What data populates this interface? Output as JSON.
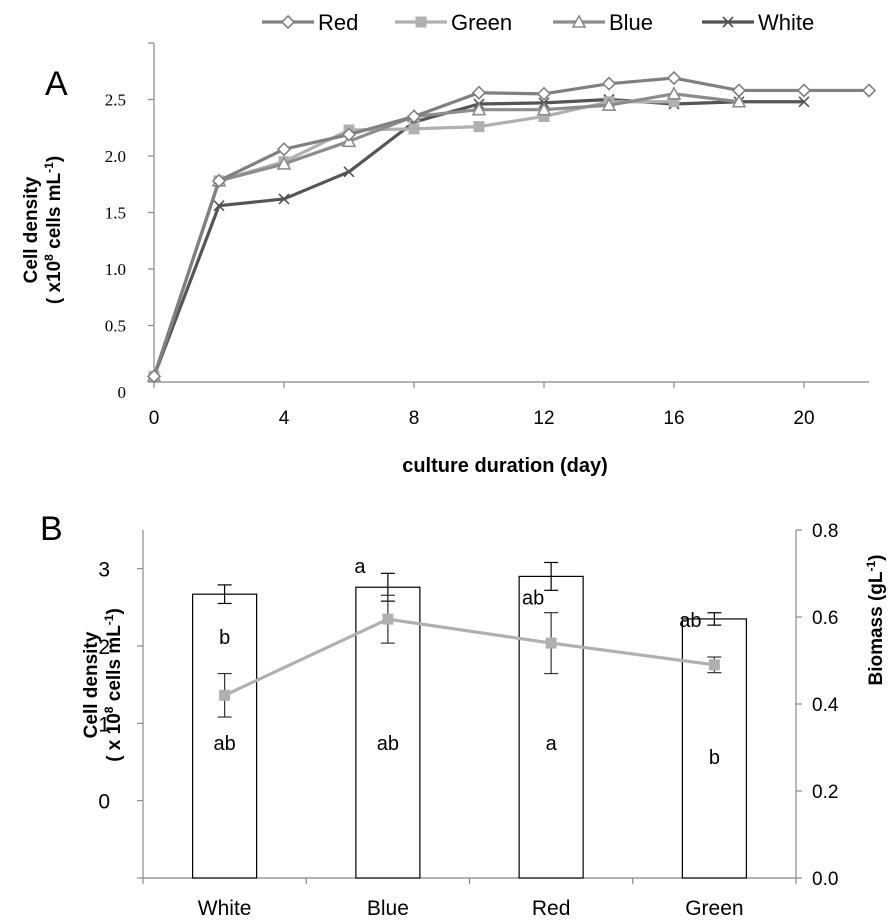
{
  "chart_data": [
    {
      "type": "line",
      "panel_label": "A",
      "xlabel": "culture duration (day)",
      "ylabel_line1": "Cell density",
      "ylabel_line2_prefix": "( x10",
      "ylabel_line2_exp": "8",
      "ylabel_line2_mid": " cells mL",
      "ylabel_line2_exp2": "-1",
      "ylabel_line2_suffix": ")",
      "xlim": [
        0,
        22
      ],
      "ylim": [
        0,
        3.0
      ],
      "x_ticks": [
        0,
        4,
        8,
        12,
        16,
        20
      ],
      "x_tick_labels": [
        "0",
        "4",
        "8",
        "12",
        "16",
        "20"
      ],
      "y_ticks": [
        0,
        0.5,
        1.0,
        1.5,
        2.0,
        2.5
      ],
      "y_tick_labels": [
        "0",
        "0.5",
        "1.0",
        "1.5",
        "2.0",
        "2.5"
      ],
      "legend_position": "top",
      "series": [
        {
          "name": "Red",
          "color": "#808080",
          "marker": "diamond",
          "x": [
            0,
            2,
            4,
            6,
            8,
            10,
            12,
            14,
            16,
            18,
            20,
            22
          ],
          "y": [
            0.05,
            1.78,
            2.06,
            2.19,
            2.35,
            2.56,
            2.55,
            2.64,
            2.69,
            2.58,
            2.58,
            2.58
          ]
        },
        {
          "name": "Green",
          "color": "#b0b0b0",
          "marker": "square",
          "x": [
            0,
            2,
            4,
            6,
            8,
            10,
            12,
            14,
            16
          ],
          "y": [
            0.05,
            1.78,
            1.95,
            2.23,
            2.24,
            2.26,
            2.35,
            2.48,
            2.48
          ]
        },
        {
          "name": "Blue",
          "color": "#8c8c8c",
          "marker": "triangle",
          "x": [
            0,
            2,
            4,
            6,
            8,
            10,
            12,
            14,
            16,
            18
          ],
          "y": [
            0.05,
            1.78,
            1.93,
            2.13,
            2.35,
            2.41,
            2.41,
            2.45,
            2.55,
            2.48
          ]
        },
        {
          "name": "White",
          "color": "#555555",
          "marker": "x",
          "x": [
            0,
            2,
            4,
            6,
            8,
            10,
            12,
            14,
            16,
            18,
            20
          ],
          "y": [
            0.05,
            1.56,
            1.62,
            1.86,
            2.3,
            2.46,
            2.47,
            2.5,
            2.46,
            2.48,
            2.48
          ]
        }
      ]
    },
    {
      "type": "bar",
      "panel_label": "B",
      "categories": [
        "White",
        "Blue",
        "Red",
        "Green"
      ],
      "ylabel_left_line1": "Cell density",
      "ylabel_left_line2_prefix": "( x 10",
      "ylabel_left_line2_exp": "8",
      "ylabel_left_line2_mid": " cells mL",
      "ylabel_left_line2_exp2": "-1",
      "ylabel_left_line2_suffix": ")",
      "ylabel_right_prefix": "Biomass  (gL",
      "ylabel_right_exp": "-1",
      "ylabel_right_suffix": ")",
      "ylim_left": [
        -1,
        3.5
      ],
      "y_left_ticks": [
        0,
        1,
        2,
        3
      ],
      "y_left_tick_labels": [
        "0",
        "1",
        "2",
        "3"
      ],
      "ylim_right": [
        0,
        0.8
      ],
      "y_right_ticks": [
        0,
        0.2,
        0.4,
        0.6,
        0.8
      ],
      "y_right_tick_labels": [
        "0.0",
        "0.2",
        "0.4",
        "0.6",
        "0.8"
      ],
      "bars": {
        "name": "Cell density",
        "values": [
          2.67,
          2.76,
          2.9,
          2.35
        ],
        "errors": [
          0.12,
          0.18,
          0.18,
          0.08
        ],
        "letters": [
          "b",
          "a",
          "ab",
          "ab"
        ],
        "color": "#ffffff",
        "edge": "#000000"
      },
      "line": {
        "name": "Biomass",
        "color": "#b0b0b0",
        "marker": "square",
        "values": [
          0.42,
          0.595,
          0.54,
          0.49
        ],
        "errors": [
          0.05,
          0.055,
          0.07,
          0.018
        ],
        "letters": [
          "ab",
          "ab",
          "a",
          "b"
        ]
      }
    }
  ]
}
